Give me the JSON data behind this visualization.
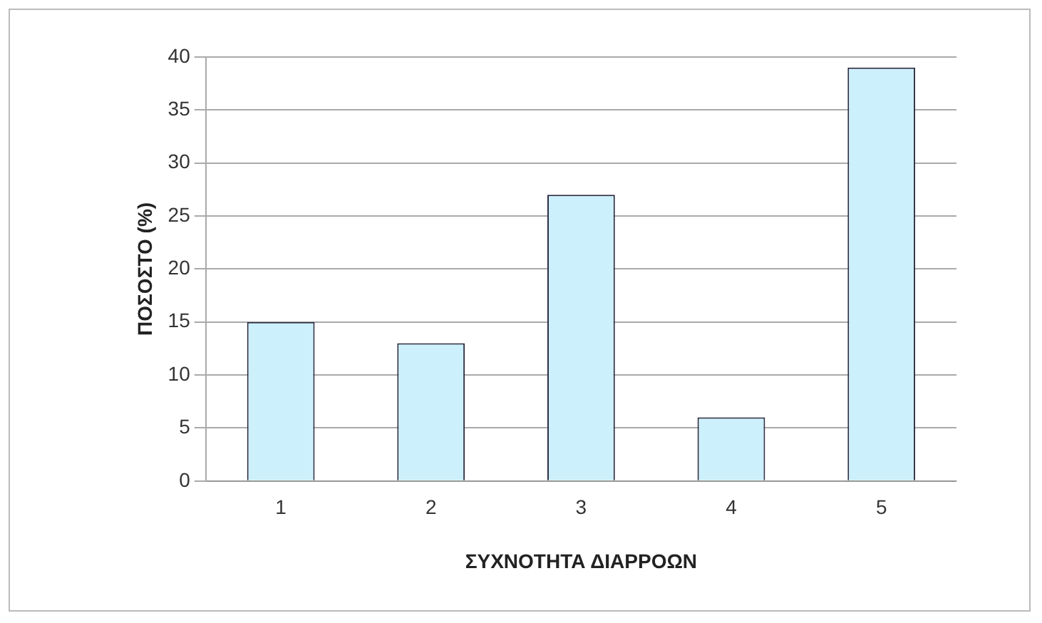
{
  "chart_data": {
    "type": "bar",
    "xlabel": "ΣΥΧΝΟΤΗΤΑ ΔΙΑΡΡΟΩΝ",
    "ylabel": "ΠΟΣΟΣΤΟ (%)",
    "categories": [
      "1",
      "2",
      "3",
      "4",
      "5"
    ],
    "values": [
      15,
      13,
      27,
      6,
      39
    ],
    "color": "#ccf0fc",
    "ylim": [
      0,
      40
    ],
    "yticks": [
      0,
      5,
      10,
      15,
      20,
      25,
      30,
      35,
      40
    ],
    "grid": "y",
    "legend": false
  }
}
